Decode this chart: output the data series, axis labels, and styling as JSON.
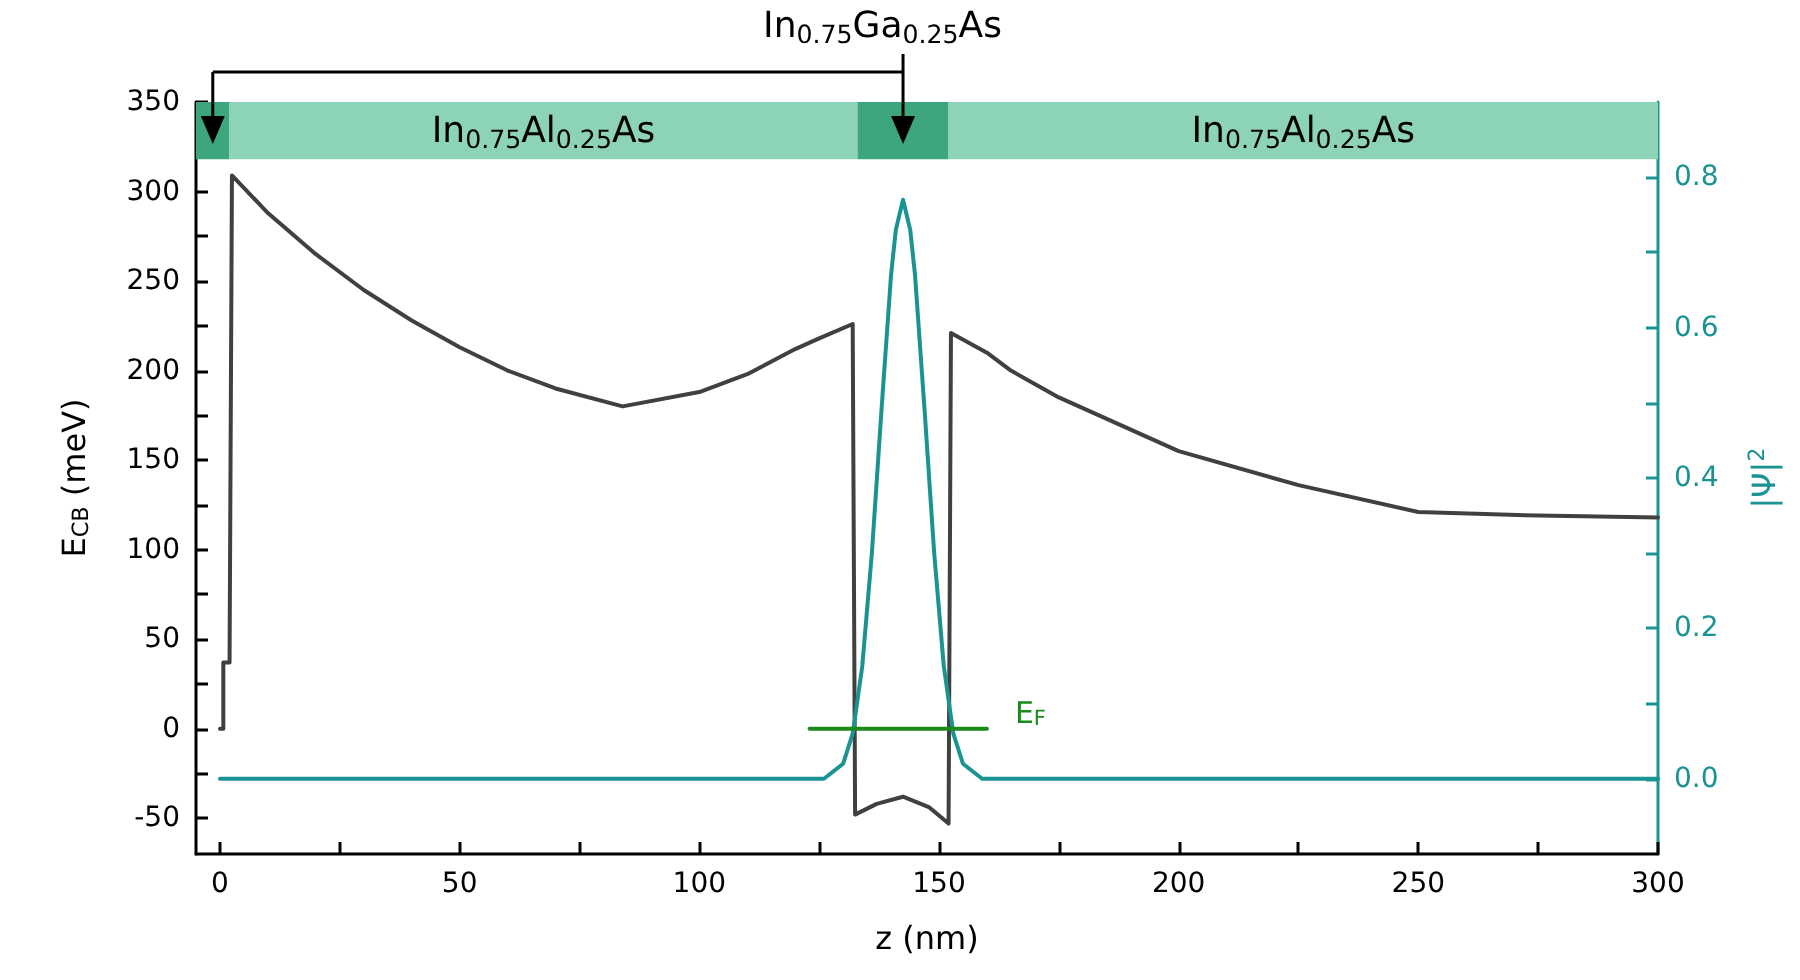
{
  "chart_data": {
    "type": "line",
    "xlabel": "z (nm)",
    "ylabel": "E$_{CB}$ (meV)",
    "y2label": "|Ψ|$^{2}$",
    "annotations": [
      "In$_{0.75}$Ga$_{0.25}$As"
    ],
    "xlim": [
      -5,
      300
    ],
    "xticks": [
      0,
      {
        "value": 25,
        "label": null
      },
      50,
      {
        "value": 75,
        "label": null
      },
      100,
      {
        "value": 125,
        "label": null
      },
      150,
      {
        "value": 175,
        "label": null
      },
      200,
      {
        "value": 225,
        "label": null
      },
      250,
      {
        "value": 275,
        "label": null
      },
      300
    ],
    "ylim": [
      -70,
      350
    ],
    "yticks": [
      -50,
      {
        "value": -25,
        "label": null
      },
      0,
      {
        "value": 25,
        "label": null
      },
      50,
      {
        "value": 75,
        "label": null
      },
      100,
      {
        "value": 125,
        "label": null
      },
      150,
      {
        "value": 175,
        "label": null
      },
      200,
      {
        "value": 225,
        "label": null
      },
      250,
      {
        "value": 275,
        "label": null
      },
      300,
      {
        "value": 325,
        "label": null
      },
      350
    ],
    "y2lim": [
      -0.1,
      0.9
    ],
    "y2ticks": [
      {
        "value": 0,
        "label": "0.0"
      },
      {
        "value": 0.1,
        "label": null
      },
      {
        "value": 0.2,
        "label": "0.2"
      },
      {
        "value": 0.3,
        "label": null
      },
      {
        "value": 0.4,
        "label": "0.4"
      },
      {
        "value": 0.5,
        "label": null
      },
      {
        "value": 0.6,
        "label": "0.6"
      },
      {
        "value": 0.7,
        "label": null
      },
      {
        "value": 0.8,
        "label": "0.8"
      }
    ],
    "bands": [
      {
        "axis": "x",
        "from": -5,
        "to": 2,
        "color": "#3ea67c"
      },
      {
        "axis": "x",
        "from": 2,
        "to": 133,
        "label": "In$_{0.75}$Al$_{0.25}$As",
        "color": "#8dd4b6"
      },
      {
        "axis": "x",
        "from": 133,
        "to": 152,
        "color": "#3ea67c"
      },
      {
        "axis": "x",
        "from": 152,
        "to": 300,
        "label": "In$_{0.75}$Al$_{0.25}$As",
        "color": "#8dd4b6"
      }
    ],
    "grid": false,
    "legend": false,
    "marker": "none",
    "line_style": "solid",
    "series": [
      {
        "color": "#404040",
        "x": [
          0,
          0.7,
          0.7,
          2,
          2.5,
          10,
          20,
          30,
          40,
          50,
          60,
          70,
          84,
          100,
          110,
          120,
          125,
          132,
          132.5,
          137,
          142.5,
          148,
          152,
          152.5,
          160,
          165,
          175,
          200,
          225,
          250,
          275,
          300
        ],
        "values": [
          0,
          0,
          37,
          37,
          309,
          288,
          265,
          245,
          228,
          213,
          200,
          190,
          180,
          188,
          198,
          212,
          218,
          226,
          -48,
          -42,
          -38,
          -44,
          -53,
          221,
          210,
          200,
          185,
          155,
          136,
          121,
          119,
          118
        ]
      },
      {
        "color": "#1a9393",
        "axis": "y2",
        "x": [
          0,
          120,
          126,
          128,
          130,
          132,
          134,
          136,
          138,
          140,
          141,
          142.5,
          144,
          145,
          147,
          149,
          151,
          153,
          155,
          157,
          159,
          165,
          300
        ],
        "values": [
          0,
          0,
          0,
          0.01,
          0.02,
          0.06,
          0.15,
          0.3,
          0.49,
          0.67,
          0.73,
          0.77,
          0.73,
          0.67,
          0.49,
          0.3,
          0.15,
          0.06,
          0.02,
          0.01,
          0,
          0,
          0
        ]
      },
      {
        "name": "E$_{F}$",
        "color": "#1a8a1a",
        "x": [
          123,
          160
        ],
        "values": [
          0,
          0
        ]
      }
    ]
  }
}
